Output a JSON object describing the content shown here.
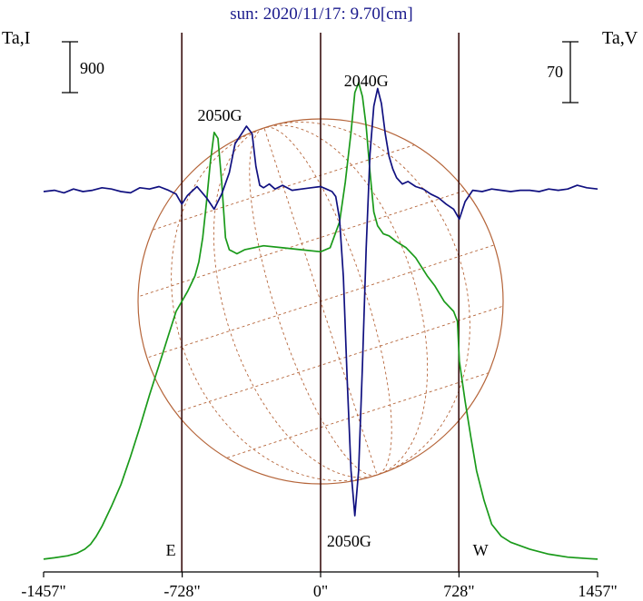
{
  "chart_data": {
    "type": "line",
    "title": "sun: 2020/11/17: 9.70[cm]",
    "y_left_label": "Ta,I",
    "y_right_label": "Ta,V",
    "scale_left_label": "900",
    "scale_right_label": "70",
    "x_ticks": [
      {
        "value": -1457,
        "label": "-1457\""
      },
      {
        "value": -728,
        "label": "-728\""
      },
      {
        "value": 0,
        "label": "0\""
      },
      {
        "value": 728,
        "label": "728\""
      },
      {
        "value": 1457,
        "label": "1457\""
      }
    ],
    "xlim": [
      -1457,
      1457
    ],
    "limb_markers": [
      {
        "label": "E",
        "x": -730
      },
      {
        "label": "W",
        "x": 727
      }
    ],
    "annotations": [
      {
        "text": "2050G",
        "x": -530,
        "series": "I"
      },
      {
        "text": "2040G",
        "x": 240,
        "series": "I"
      },
      {
        "text": "2050G",
        "x": 150,
        "series": "V"
      }
    ],
    "series": [
      {
        "key": "I",
        "color": "#1a9a1a",
        "x": [
          -1457,
          -1400,
          -1330,
          -1280,
          -1240,
          -1210,
          -1180,
          -1150,
          -1100,
          -1050,
          -1000,
          -950,
          -900,
          -850,
          -800,
          -760,
          -730,
          -700,
          -680,
          -660,
          -640,
          -620,
          -600,
          -580,
          -560,
          -540,
          -520,
          -500,
          -480,
          -460,
          -440,
          -400,
          -300,
          -200,
          -100,
          0,
          50,
          100,
          130,
          160,
          180,
          200,
          220,
          240,
          260,
          280,
          300,
          330,
          360,
          400,
          450,
          500,
          560,
          600,
          650,
          700,
          720,
          730,
          760,
          790,
          820,
          860,
          900,
          950,
          1000,
          1100,
          1200,
          1300,
          1400,
          1457
        ],
        "values": [
          5,
          12,
          22,
          35,
          55,
          80,
          120,
          170,
          270,
          380,
          520,
          670,
          830,
          980,
          1130,
          1250,
          1300,
          1350,
          1390,
          1430,
          1500,
          1620,
          1800,
          2000,
          2150,
          2120,
          1900,
          1620,
          1560,
          1550,
          1540,
          1560,
          1580,
          1570,
          1560,
          1550,
          1570,
          1700,
          1900,
          2150,
          2350,
          2400,
          2330,
          2180,
          1950,
          1750,
          1680,
          1640,
          1630,
          1600,
          1570,
          1520,
          1430,
          1380,
          1300,
          1250,
          1200,
          1000,
          800,
          620,
          450,
          300,
          180,
          120,
          90,
          55,
          30,
          15,
          8,
          5
        ]
      },
      {
        "key": "V",
        "color": "#101080",
        "x": [
          -1457,
          -1400,
          -1350,
          -1300,
          -1250,
          -1200,
          -1150,
          -1100,
          -1050,
          -1000,
          -950,
          -900,
          -850,
          -800,
          -760,
          -730,
          -700,
          -650,
          -600,
          -560,
          -520,
          -480,
          -450,
          -420,
          -390,
          -360,
          -340,
          -320,
          -300,
          -270,
          -240,
          -200,
          -150,
          -100,
          -50,
          0,
          30,
          60,
          80,
          100,
          120,
          140,
          160,
          180,
          200,
          220,
          240,
          260,
          280,
          300,
          320,
          340,
          360,
          380,
          400,
          430,
          460,
          500,
          540,
          580,
          620,
          660,
          700,
          730,
          760,
          800,
          850,
          900,
          950,
          1000,
          1050,
          1100,
          1150,
          1200,
          1250,
          1300,
          1350,
          1400,
          1457
        ],
        "values": [
          0,
          1,
          -1,
          2,
          0,
          1,
          3,
          2,
          0,
          -1,
          3,
          2,
          4,
          1,
          -2,
          -10,
          -3,
          4,
          -5,
          -14,
          -2,
          15,
          38,
          45,
          52,
          46,
          20,
          5,
          3,
          6,
          2,
          5,
          1,
          2,
          3,
          4,
          2,
          0,
          -4,
          -22,
          -68,
          -150,
          -222,
          -258,
          -222,
          -138,
          -45,
          30,
          68,
          82,
          70,
          46,
          28,
          18,
          11,
          6,
          8,
          4,
          2,
          -2,
          -5,
          -10,
          -14,
          -22,
          -8,
          1,
          0,
          2,
          1,
          0,
          1,
          1,
          0,
          2,
          1,
          2,
          5,
          3,
          2
        ]
      }
    ]
  }
}
